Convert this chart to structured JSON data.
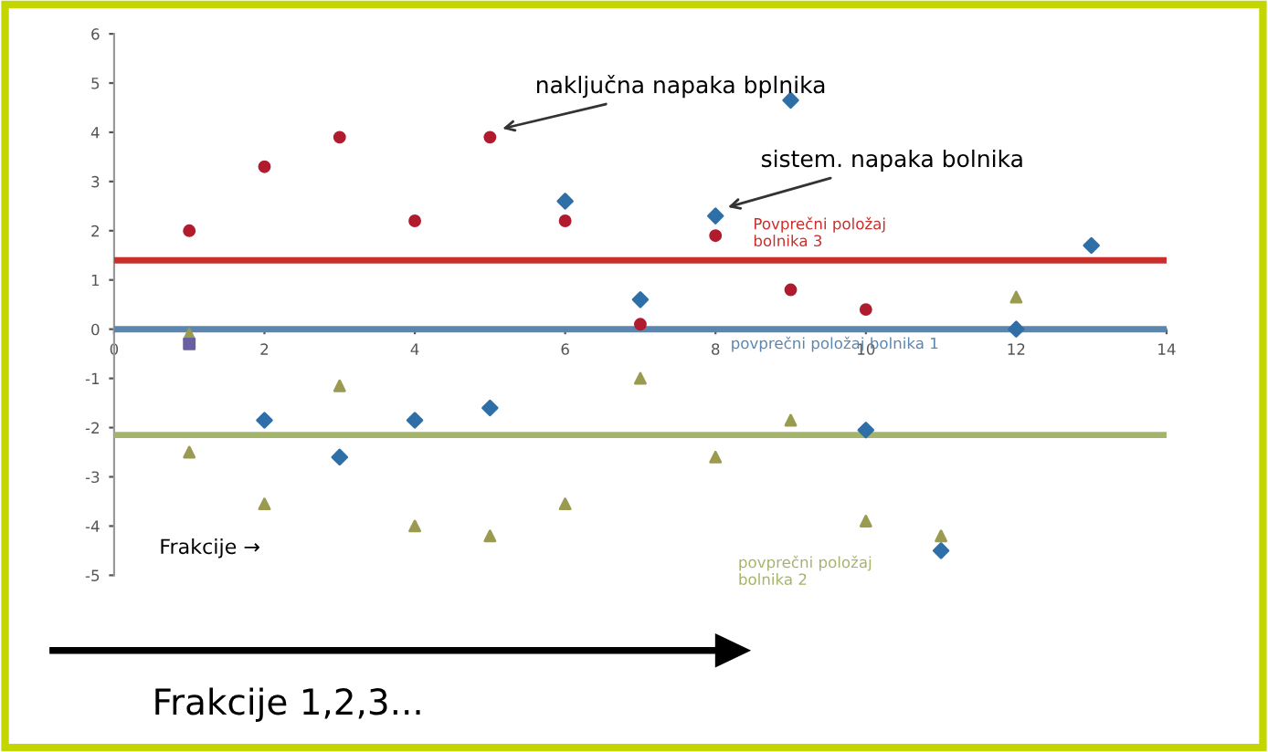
{
  "chart_data": {
    "type": "scatter",
    "xlim": [
      0,
      14
    ],
    "ylim": [
      -5,
      6
    ],
    "xticks": [
      0,
      2,
      4,
      6,
      8,
      10,
      12,
      14
    ],
    "yticks": [
      -5,
      -4,
      -3,
      -2,
      -1,
      0,
      1,
      2,
      3,
      4,
      5,
      6
    ],
    "grid": false,
    "legend": false,
    "series": [
      {
        "color": "#b01c2e",
        "marker": "circle",
        "x": [
          1,
          2,
          3,
          4,
          5,
          6,
          7,
          8,
          9,
          10
        ],
        "values": [
          2.0,
          3.3,
          3.9,
          2.2,
          3.9,
          2.2,
          0.1,
          1.9,
          0.8,
          0.4
        ]
      },
      {
        "color": "#2f6fa8",
        "marker": "diamond",
        "x": [
          2,
          3,
          4,
          5,
          6,
          7,
          8,
          9,
          10,
          11,
          12,
          13
        ],
        "values": [
          -1.85,
          -2.6,
          -1.85,
          -1.6,
          2.6,
          0.6,
          2.3,
          4.65,
          -2.05,
          -4.5,
          0.0,
          1.7
        ]
      },
      {
        "color": "#9a9a50",
        "marker": "triangle",
        "x": [
          1,
          1,
          2,
          3,
          4,
          5,
          6,
          7,
          8,
          9,
          10,
          11,
          12
        ],
        "values": [
          -0.1,
          -2.5,
          -3.55,
          -1.15,
          -4.0,
          -4.2,
          -3.55,
          -1.0,
          -2.6,
          -1.85,
          -3.9,
          -4.2,
          0.65
        ]
      },
      {
        "color": "#6a5fa0",
        "marker": "square",
        "x": [
          1
        ],
        "values": [
          -0.3
        ]
      }
    ],
    "ref_lines": [
      {
        "axis": "y",
        "value": 1.4,
        "label": "Povprečni položaj\nbolnika 3",
        "color": "#c8302c"
      },
      {
        "axis": "y",
        "value": 0,
        "label": "povprečni položaj bolnika 1",
        "color": "#5b86b0"
      },
      {
        "axis": "y",
        "value": -2.15,
        "label": "povprečni položaj\nbolnika 2",
        "color": "#a4b46a"
      }
    ],
    "annotations": [
      {
        "text": "naključna napaka bplnika",
        "x": 5,
        "y": 3.9
      },
      {
        "text": "sistem. napaka bolnika",
        "x": 8,
        "y": 2.3
      },
      "Frakcije →",
      "Frakcije 1,2,3..."
    ]
  }
}
